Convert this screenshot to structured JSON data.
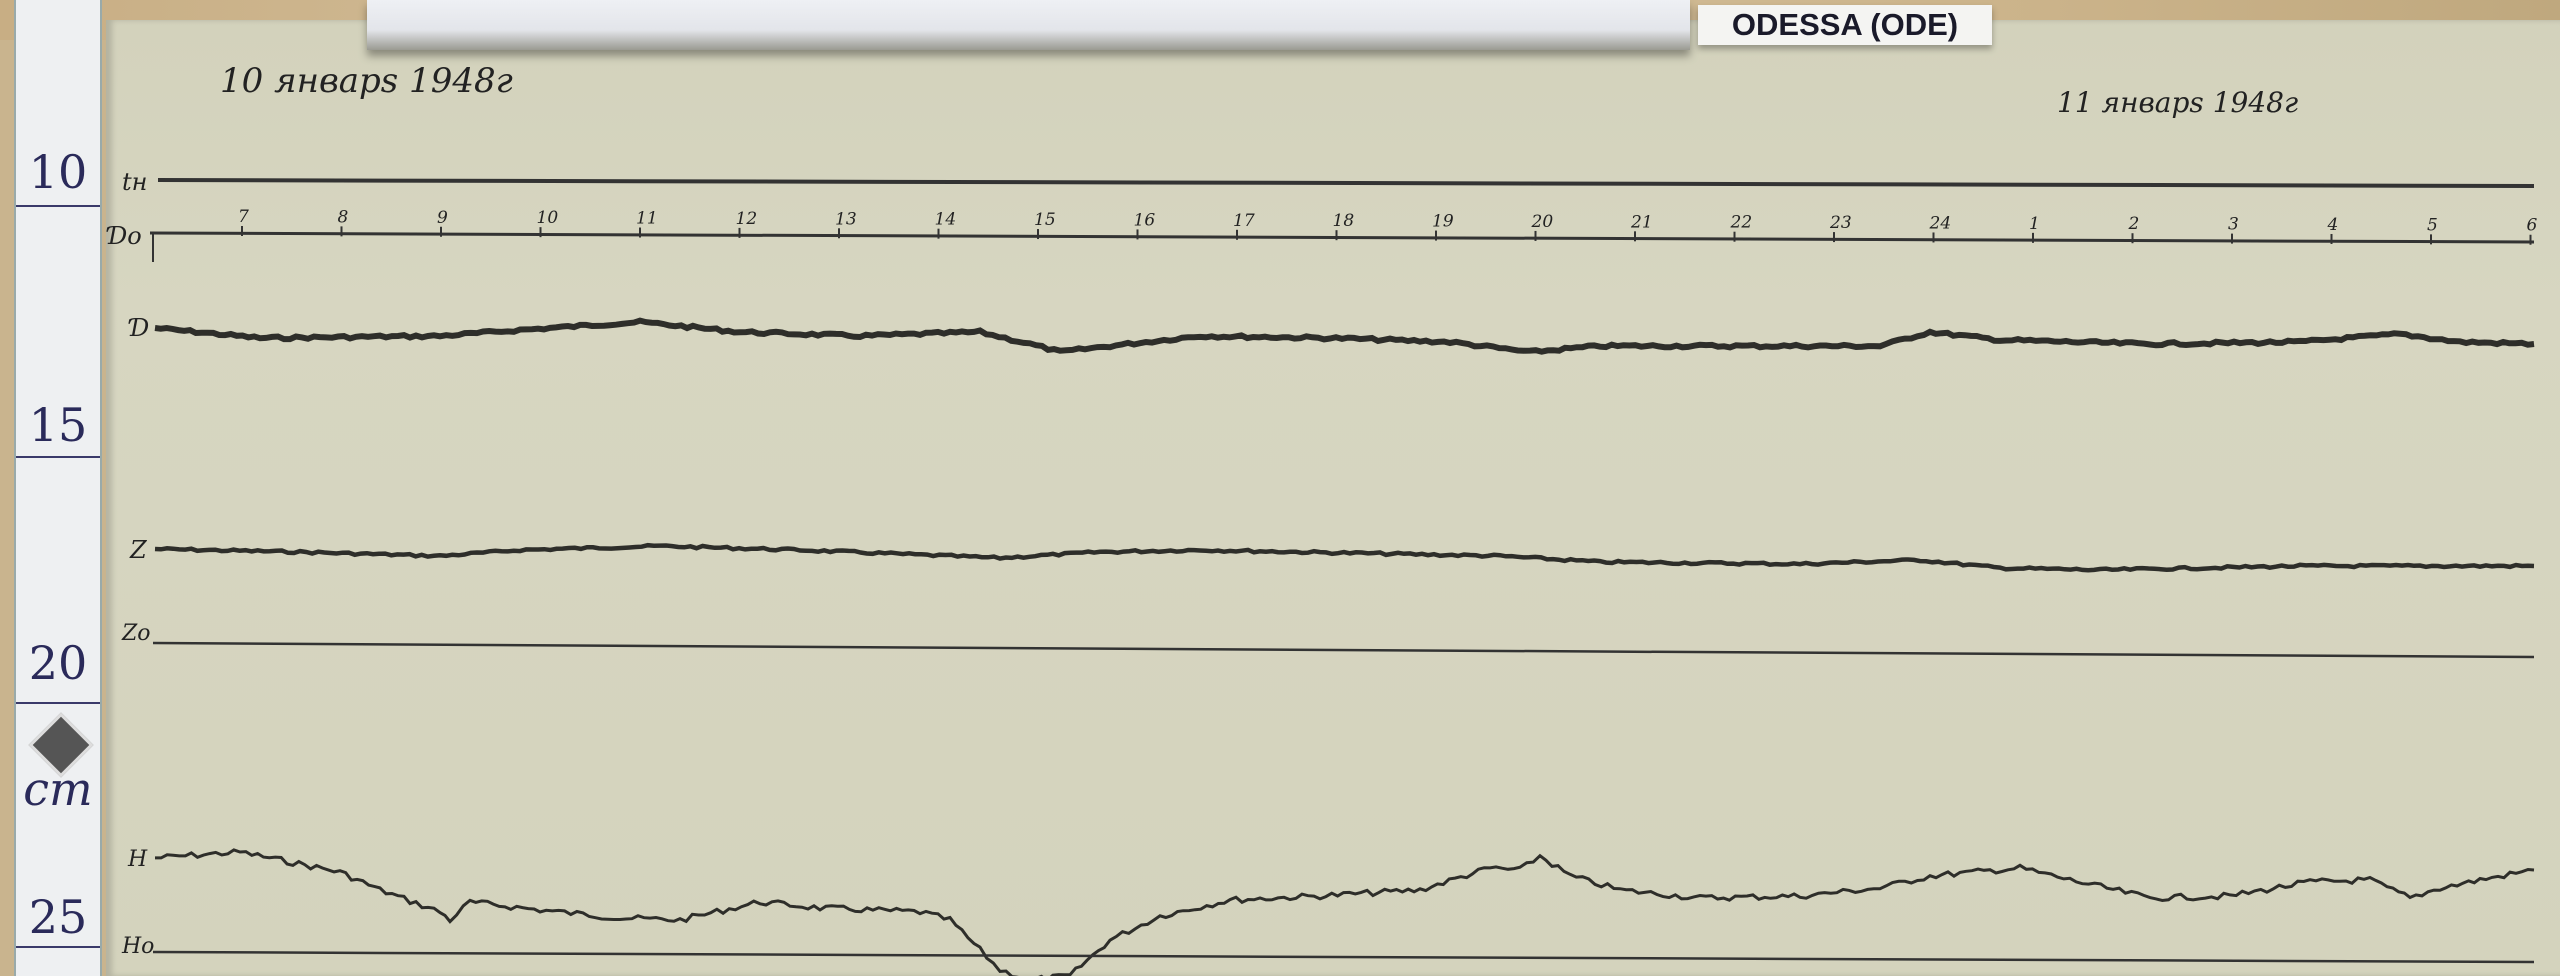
{
  "station_label": "ODESSA (ODE)",
  "dates": {
    "day1": "10 январѕ 1948г",
    "day2": "11 январѕ 1948г"
  },
  "ruler": {
    "marks": [
      "10",
      "15",
      "20",
      "25"
    ],
    "unit": "cm"
  },
  "trace_labels": {
    "tn": "tн",
    "d0": "Ɗo",
    "d": "Ɗ",
    "z": "Z",
    "z0": "Zo",
    "h": "H",
    "h0": "Ho"
  },
  "hour_ticks": [
    "7",
    "8",
    "9",
    "10",
    "11",
    "12",
    "13",
    "14",
    "15",
    "16",
    "17",
    "18",
    "19",
    "20",
    "21",
    "22",
    "23",
    "24",
    "1",
    "2",
    "3",
    "4",
    "5",
    "6"
  ],
  "colors": {
    "paper": "#d5d4be",
    "trace": "#2e2e2a",
    "ruler_ink": "#2a2a5a"
  }
}
